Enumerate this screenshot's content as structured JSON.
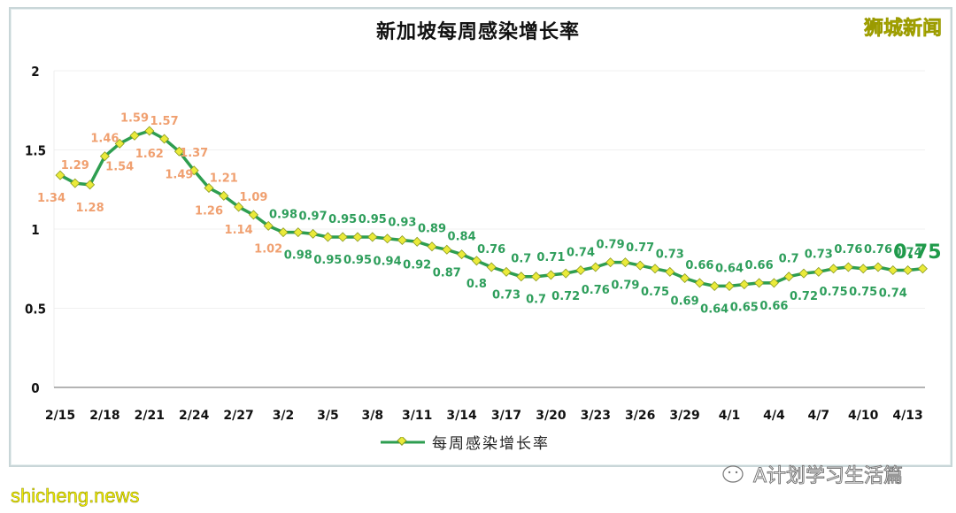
{
  "chart_data": {
    "type": "line",
    "title": "新加坡每周感染增长率",
    "xlabel": "",
    "ylabel": "",
    "ylim": [
      0,
      2
    ],
    "yticks": [
      "0",
      "0.5",
      "1",
      "1.5",
      "2"
    ],
    "xtick_labels": [
      "2/15",
      "2/18",
      "2/21",
      "2/24",
      "2/27",
      "3/2",
      "3/5",
      "3/8",
      "3/11",
      "3/14",
      "3/17",
      "3/20",
      "3/23",
      "3/26",
      "3/29",
      "4/1",
      "4/4",
      "4/7",
      "4/10",
      "4/13"
    ],
    "grid": "horizontal",
    "legend_position": "bottom",
    "series": [
      {
        "name": "每周感染增长率",
        "color": "#2e9e50",
        "marker_color": "#eaea3a",
        "values": [
          1.34,
          1.29,
          1.28,
          1.46,
          1.54,
          1.59,
          1.62,
          1.57,
          1.49,
          1.37,
          1.26,
          1.21,
          1.14,
          1.09,
          1.02,
          0.98,
          0.98,
          0.97,
          0.95,
          0.95,
          0.95,
          0.95,
          0.94,
          0.93,
          0.92,
          0.89,
          0.87,
          0.84,
          0.8,
          0.76,
          0.73,
          0.7,
          0.7,
          0.71,
          0.72,
          0.74,
          0.76,
          0.79,
          0.79,
          0.77,
          0.75,
          0.73,
          0.69,
          0.66,
          0.64,
          0.64,
          0.65,
          0.66,
          0.66,
          0.7,
          0.72,
          0.73,
          0.75,
          0.76,
          0.75,
          0.76,
          0.74,
          0.74,
          0.75
        ]
      }
    ],
    "x_start": "2/15",
    "x_end": "4/14",
    "label_colors": {
      "above_or_equal_1": "#f0a070",
      "below_1": "#2e9e5b"
    },
    "highlight_last": "0.75"
  },
  "header": {
    "title": "新加坡每周感染增长率",
    "brand": "狮城新闻"
  },
  "legend": {
    "label": "每周感染增长率"
  },
  "watermarks": {
    "left": "shicheng.news",
    "right": "A计划学习生活篇"
  }
}
